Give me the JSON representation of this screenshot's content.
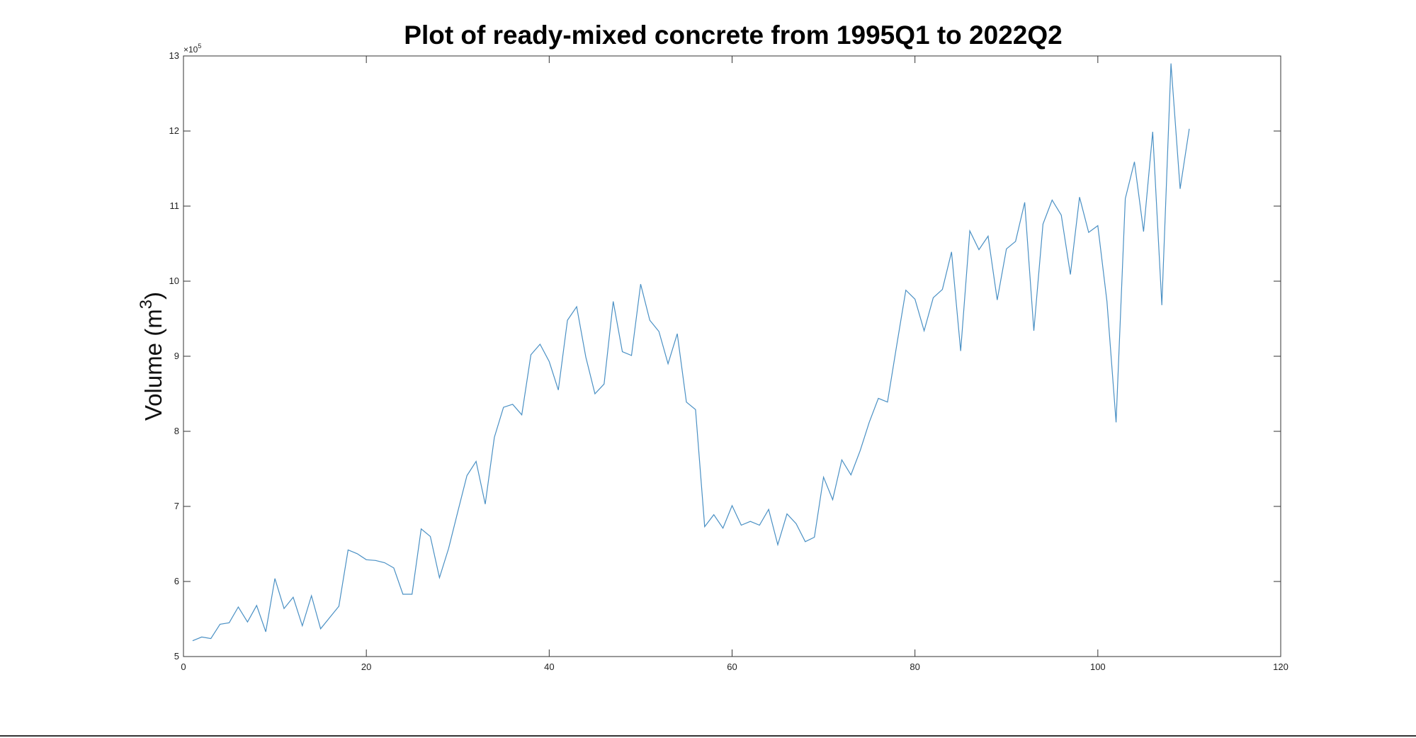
{
  "chart_data": {
    "type": "line",
    "title": "Plot of ready-mixed concrete from 1995Q1 to 2022Q2",
    "xlabel": "",
    "ylabel_text": "Volume (m",
    "ylabel_superscript": "3",
    "ylabel_close": ")",
    "y_exponent_prefix": "×10",
    "y_exponent_power": "5",
    "xlim": [
      0,
      120
    ],
    "ylim": [
      5,
      13
    ],
    "x_ticks": [
      0,
      20,
      40,
      60,
      80,
      100,
      120
    ],
    "y_ticks": [
      5,
      6,
      7,
      8,
      9,
      10,
      11,
      12,
      13
    ],
    "x_tick_labels": [
      "0",
      "20",
      "40",
      "60",
      "80",
      "100",
      "120"
    ],
    "y_tick_labels": [
      "5",
      "6",
      "7",
      "8",
      "9",
      "10",
      "11",
      "12",
      "13"
    ],
    "grid": false,
    "line_color": "#4a90c4",
    "series": [
      {
        "x": [
          1,
          2,
          3,
          4,
          5,
          6,
          7,
          8,
          9,
          10,
          11,
          12,
          13,
          14,
          15,
          16,
          17,
          18,
          19,
          20,
          21,
          22,
          23,
          24,
          25,
          26,
          27,
          28,
          29,
          30,
          31,
          32,
          33,
          34,
          35,
          36,
          37,
          38,
          39,
          40,
          41,
          42,
          43,
          44,
          45,
          46,
          47,
          48,
          49,
          50,
          51,
          52,
          53,
          54,
          55,
          56,
          57,
          58,
          59,
          60,
          61,
          62,
          63,
          64,
          65,
          66,
          67,
          68,
          69,
          70,
          71,
          72,
          73,
          74,
          75,
          76,
          77,
          78,
          79,
          80,
          81,
          82,
          83,
          84,
          85,
          86,
          87,
          88,
          89,
          90,
          91,
          92,
          93,
          94,
          95,
          96,
          97,
          98,
          99,
          100,
          101,
          102,
          103,
          104,
          105,
          106,
          107,
          108,
          109,
          110
        ],
        "values": [
          5.21,
          5.26,
          5.24,
          5.43,
          5.45,
          5.66,
          5.46,
          5.68,
          5.33,
          6.04,
          5.64,
          5.79,
          5.41,
          5.81,
          5.37,
          5.52,
          5.67,
          6.42,
          6.37,
          6.29,
          6.28,
          6.25,
          6.18,
          5.83,
          5.83,
          6.7,
          6.6,
          6.05,
          6.44,
          6.93,
          7.41,
          7.6,
          7.03,
          7.92,
          8.32,
          8.36,
          8.22,
          9.02,
          9.16,
          8.93,
          8.55,
          9.48,
          9.66,
          8.99,
          8.5,
          8.63,
          9.73,
          9.06,
          9.01,
          9.96,
          9.48,
          9.33,
          8.9,
          9.3,
          8.39,
          8.29,
          6.73,
          6.89,
          6.71,
          7.01,
          6.75,
          6.8,
          6.75,
          6.96,
          6.49,
          6.9,
          6.77,
          6.53,
          6.59,
          7.39,
          7.09,
          7.62,
          7.42,
          7.74,
          8.12,
          8.44,
          8.39,
          9.14,
          9.88,
          9.76,
          9.34,
          9.78,
          9.89,
          10.39,
          9.07,
          10.67,
          10.42,
          10.6,
          9.75,
          10.43,
          10.53,
          11.05,
          9.34,
          10.76,
          11.08,
          10.88,
          10.09,
          11.12,
          10.65,
          10.74,
          9.73,
          8.12,
          11.1,
          11.59,
          10.66,
          11.99,
          9.68,
          12.9,
          11.23,
          12.03
        ]
      }
    ]
  }
}
